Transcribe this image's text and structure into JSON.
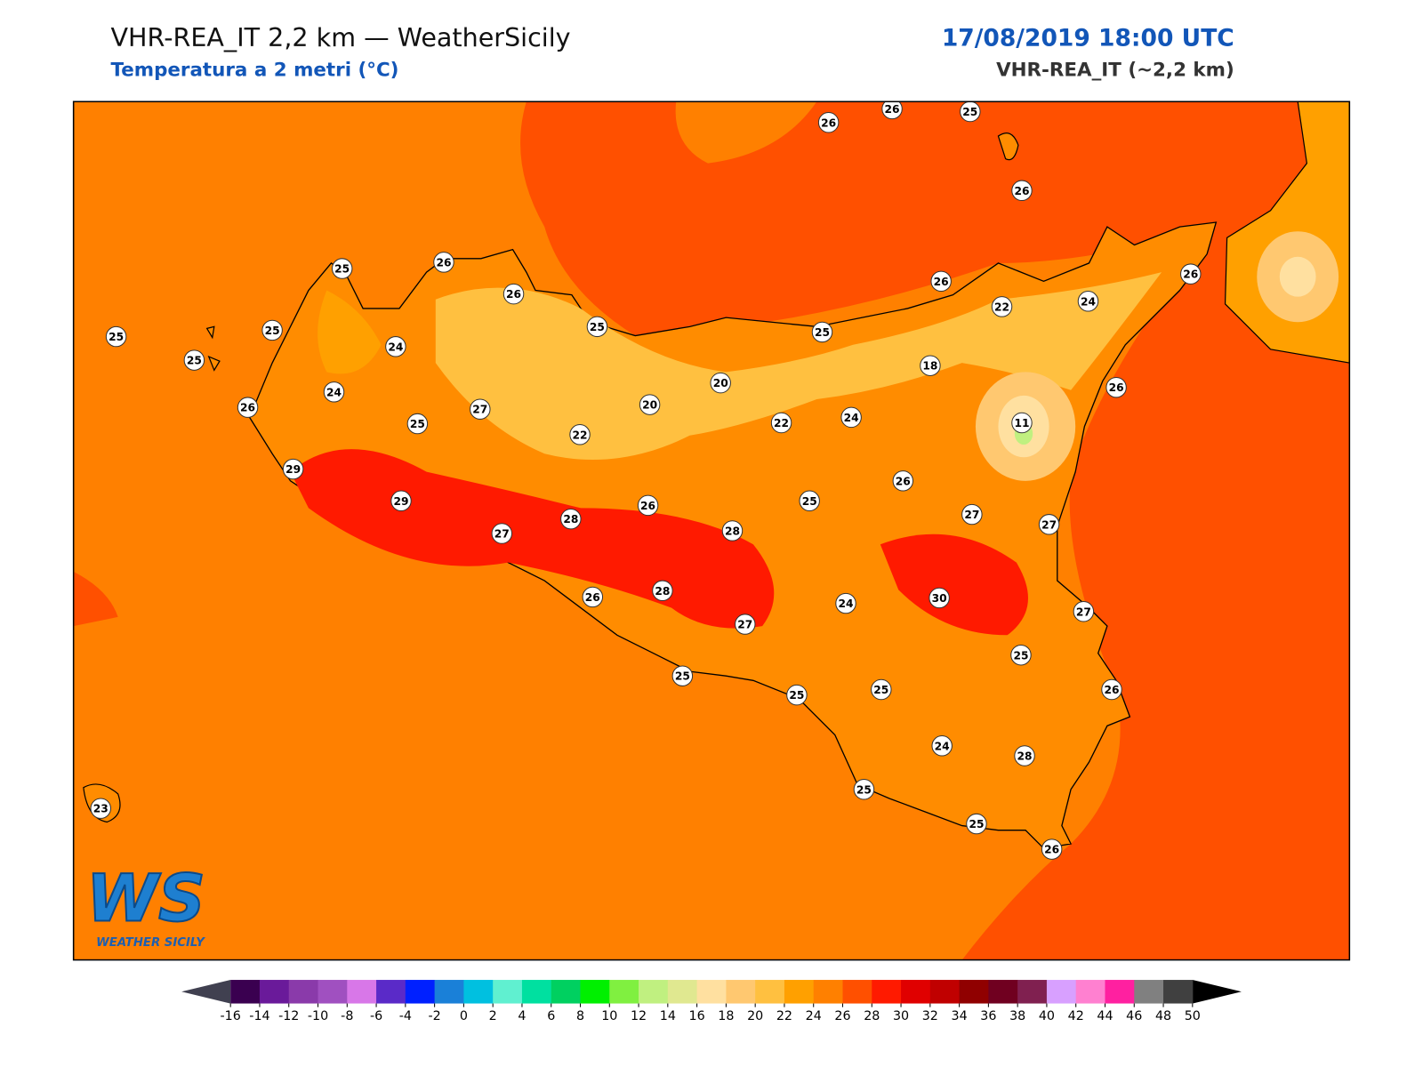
{
  "header": {
    "title": "VHR-REA_IT 2,2 km — WeatherSicily",
    "subtitle": "Temperatura a 2 metri (°C)",
    "date": "17/08/2019 18:00 UTC",
    "model": "VHR-REA_IT (~2,2 km)"
  },
  "logo": {
    "mark": "WS",
    "text": "WEATHER SICILY"
  },
  "stations": [
    26,
    26,
    25,
    26,
    25,
    26,
    26,
    25,
    25,
    25,
    24,
    25,
    25,
    26,
    22,
    24,
    26,
    24,
    26,
    27,
    25,
    20,
    20,
    22,
    22,
    24,
    18,
    11,
    26,
    29,
    29,
    27,
    28,
    26,
    28,
    25,
    26,
    27,
    27,
    26,
    28,
    27,
    24,
    30,
    27,
    25,
    25,
    25,
    25,
    26,
    24,
    28,
    23,
    25,
    25,
    26
  ],
  "colorbar": {
    "ticks": [
      -16,
      -14,
      -12,
      -10,
      -8,
      -6,
      -4,
      -2,
      0,
      2,
      4,
      6,
      8,
      10,
      12,
      14,
      16,
      18,
      20,
      22,
      24,
      26,
      28,
      30,
      32,
      34,
      36,
      38,
      40,
      42,
      44,
      46,
      48,
      50
    ],
    "colors": [
      "#3a0050",
      "#6a1a9a",
      "#8a3aaa",
      "#a050c0",
      "#d877e8",
      "#5a2ac8",
      "#0020ff",
      "#1a80d8",
      "#00c0e0",
      "#60f0d0",
      "#00e0a0",
      "#00d060",
      "#00f000",
      "#80f040",
      "#c0f080",
      "#e0e890",
      "#ffe0a0",
      "#ffc870",
      "#ffc040",
      "#ffa000",
      "#ff8000",
      "#ff5000",
      "#ff1a00",
      "#e00000",
      "#c00000",
      "#900000",
      "#700020",
      "#802050",
      "#d8a0ff",
      "#ff80d0",
      "#ff20a0",
      "#808080",
      "#404040"
    ],
    "under_color": "#404050",
    "over_color": "#000000"
  }
}
